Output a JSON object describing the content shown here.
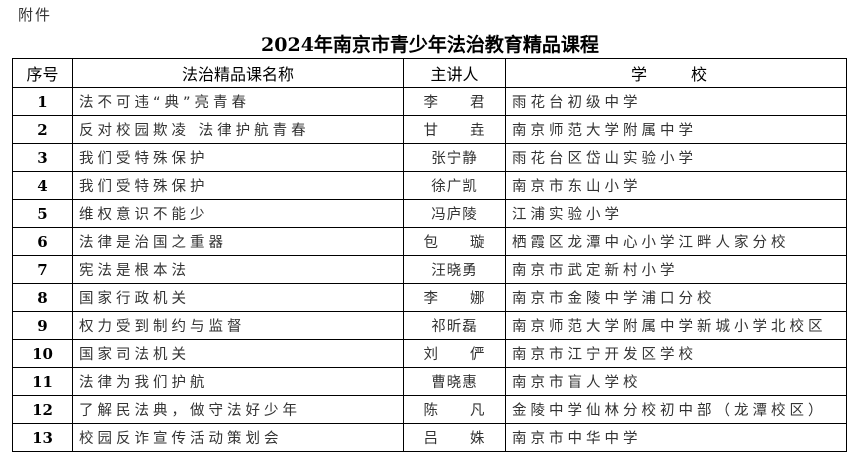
{
  "attachment_label": "附件",
  "title": "2024年南京市青少年法治教育精品课程",
  "table": {
    "headers": [
      "序号",
      "法治精品课名称",
      "主讲人",
      "学　校"
    ],
    "rows": [
      {
        "no": "1",
        "course": "法不可违“典”亮青春",
        "lecturer": "李　　君",
        "school": "雨花台初级中学"
      },
      {
        "no": "2",
        "course": "反对校园欺凌 法律护航青春",
        "lecturer": "甘　　垚",
        "school": "南京师范大学附属中学"
      },
      {
        "no": "3",
        "course": "我们受特殊保护",
        "lecturer": "张宁静",
        "school": "雨花台区岱山实验小学"
      },
      {
        "no": "4",
        "course": "我们受特殊保护",
        "lecturer": "徐广凯",
        "school": "南京市东山小学"
      },
      {
        "no": "5",
        "course": "维权意识不能少",
        "lecturer": "冯庐陵",
        "school": "江浦实验小学"
      },
      {
        "no": "6",
        "course": "法律是治国之重器",
        "lecturer": "包　　璇",
        "school": "栖霞区龙潭中心小学江畔人家分校"
      },
      {
        "no": "7",
        "course": "宪法是根本法",
        "lecturer": "汪晓勇",
        "school": "南京市武定新村小学"
      },
      {
        "no": "8",
        "course": "国家行政机关",
        "lecturer": "李　　娜",
        "school": "南京市金陵中学浦口分校"
      },
      {
        "no": "9",
        "course": "权力受到制约与监督",
        "lecturer": "祁昕磊",
        "school": "南京师范大学附属中学新城小学北校区"
      },
      {
        "no": "10",
        "course": "国家司法机关",
        "lecturer": "刘　　俨",
        "school": "南京市江宁开发区学校"
      },
      {
        "no": "11",
        "course": "法律为我们护航",
        "lecturer": "曹晓惠",
        "school": "南京市盲人学校"
      },
      {
        "no": "12",
        "course": "了解民法典，做守法好少年",
        "lecturer": "陈　　凡",
        "school": "金陵中学仙林分校初中部（龙潭校区）"
      },
      {
        "no": "13",
        "course": "校园反诈宣传活动策划会",
        "lecturer": "吕　　姝",
        "school": "南京市中华中学"
      }
    ]
  }
}
